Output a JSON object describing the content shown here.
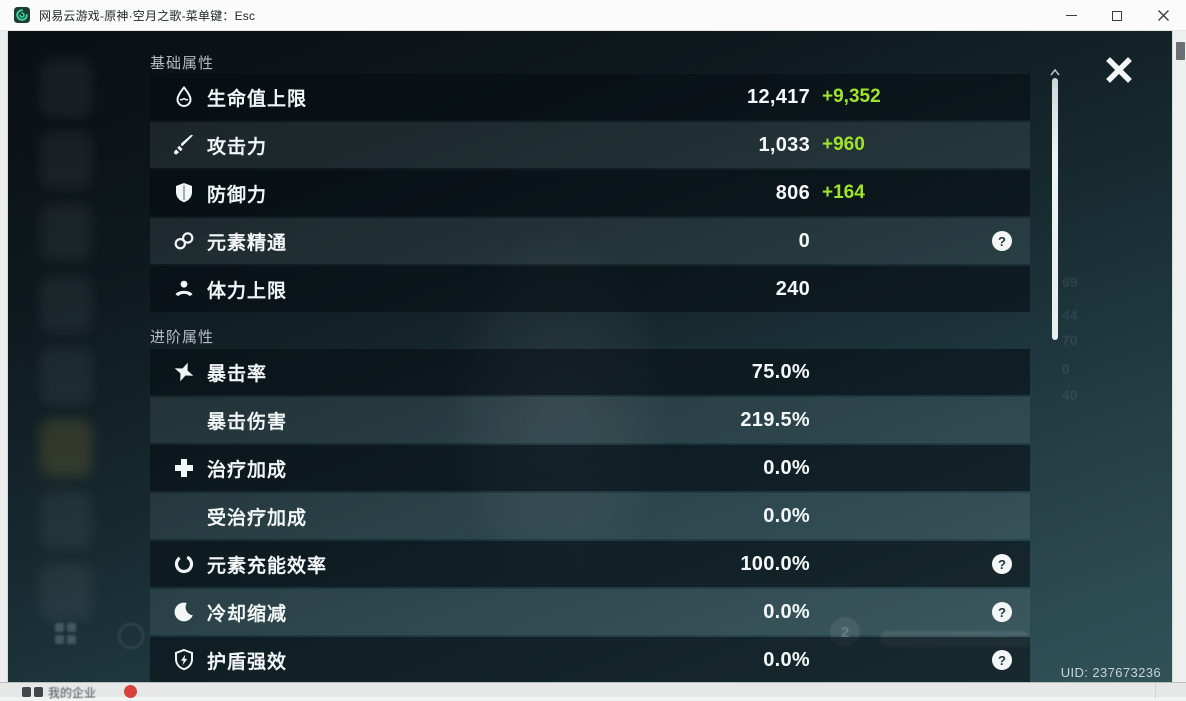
{
  "window": {
    "title": "网易云游戏-原神·空月之歌-菜单键：Esc"
  },
  "panel": {
    "sections": [
      {
        "title": "基础属性",
        "rows": [
          {
            "key": "max-hp",
            "icon": "hp-drop-icon",
            "label": "生命值上限",
            "value": "12,417",
            "bonus": "+9,352",
            "help": false
          },
          {
            "key": "atk",
            "icon": "attack-sword-icon",
            "label": "攻击力",
            "value": "1,033",
            "bonus": "+960",
            "help": false
          },
          {
            "key": "def",
            "icon": "defense-shield-icon",
            "label": "防御力",
            "value": "806",
            "bonus": "+164",
            "help": false
          },
          {
            "key": "elemental-mastery",
            "icon": "elemental-mastery-icon",
            "label": "元素精通",
            "value": "0",
            "bonus": null,
            "help": true
          },
          {
            "key": "max-stamina",
            "icon": "stamina-icon",
            "label": "体力上限",
            "value": "240",
            "bonus": null,
            "help": false
          }
        ]
      },
      {
        "title": "进阶属性",
        "rows": [
          {
            "key": "crit-rate",
            "icon": "crit-rate-icon",
            "label": "暴击率",
            "value": "75.0%",
            "bonus": null,
            "help": false
          },
          {
            "key": "crit-dmg",
            "icon": null,
            "label": "暴击伤害",
            "value": "219.5%",
            "bonus": null,
            "help": false
          },
          {
            "key": "healing-bonus",
            "icon": "healing-bonus-icon",
            "label": "治疗加成",
            "value": "0.0%",
            "bonus": null,
            "help": false
          },
          {
            "key": "incoming-healing-bonus",
            "icon": null,
            "label": "受治疗加成",
            "value": "0.0%",
            "bonus": null,
            "help": false
          },
          {
            "key": "energy-recharge",
            "icon": "energy-recharge-icon",
            "label": "元素充能效率",
            "value": "100.0%",
            "bonus": null,
            "help": true
          },
          {
            "key": "cd-reduction",
            "icon": "cooldown-icon",
            "label": "冷却缩减",
            "value": "0.0%",
            "bonus": null,
            "help": true
          },
          {
            "key": "shield-strength",
            "icon": "shield-strength-icon",
            "label": "护盾强效",
            "value": "0.0%",
            "bonus": null,
            "help": true
          }
        ]
      }
    ],
    "help_glyph": "?"
  },
  "uid_label": "UID: 237673236",
  "footer": {
    "label": "我的企业"
  },
  "ghosts": {
    "numbers": [
      "69",
      "44",
      "70",
      "0",
      "40"
    ],
    "circle_label": "2"
  },
  "colors": {
    "bonus_green": "#9fe32b",
    "badge_red": "#d6413b",
    "logo_green": "#3ecf96",
    "panel_row_dark": "#0a1114",
    "background_teal": "#2a474d"
  }
}
